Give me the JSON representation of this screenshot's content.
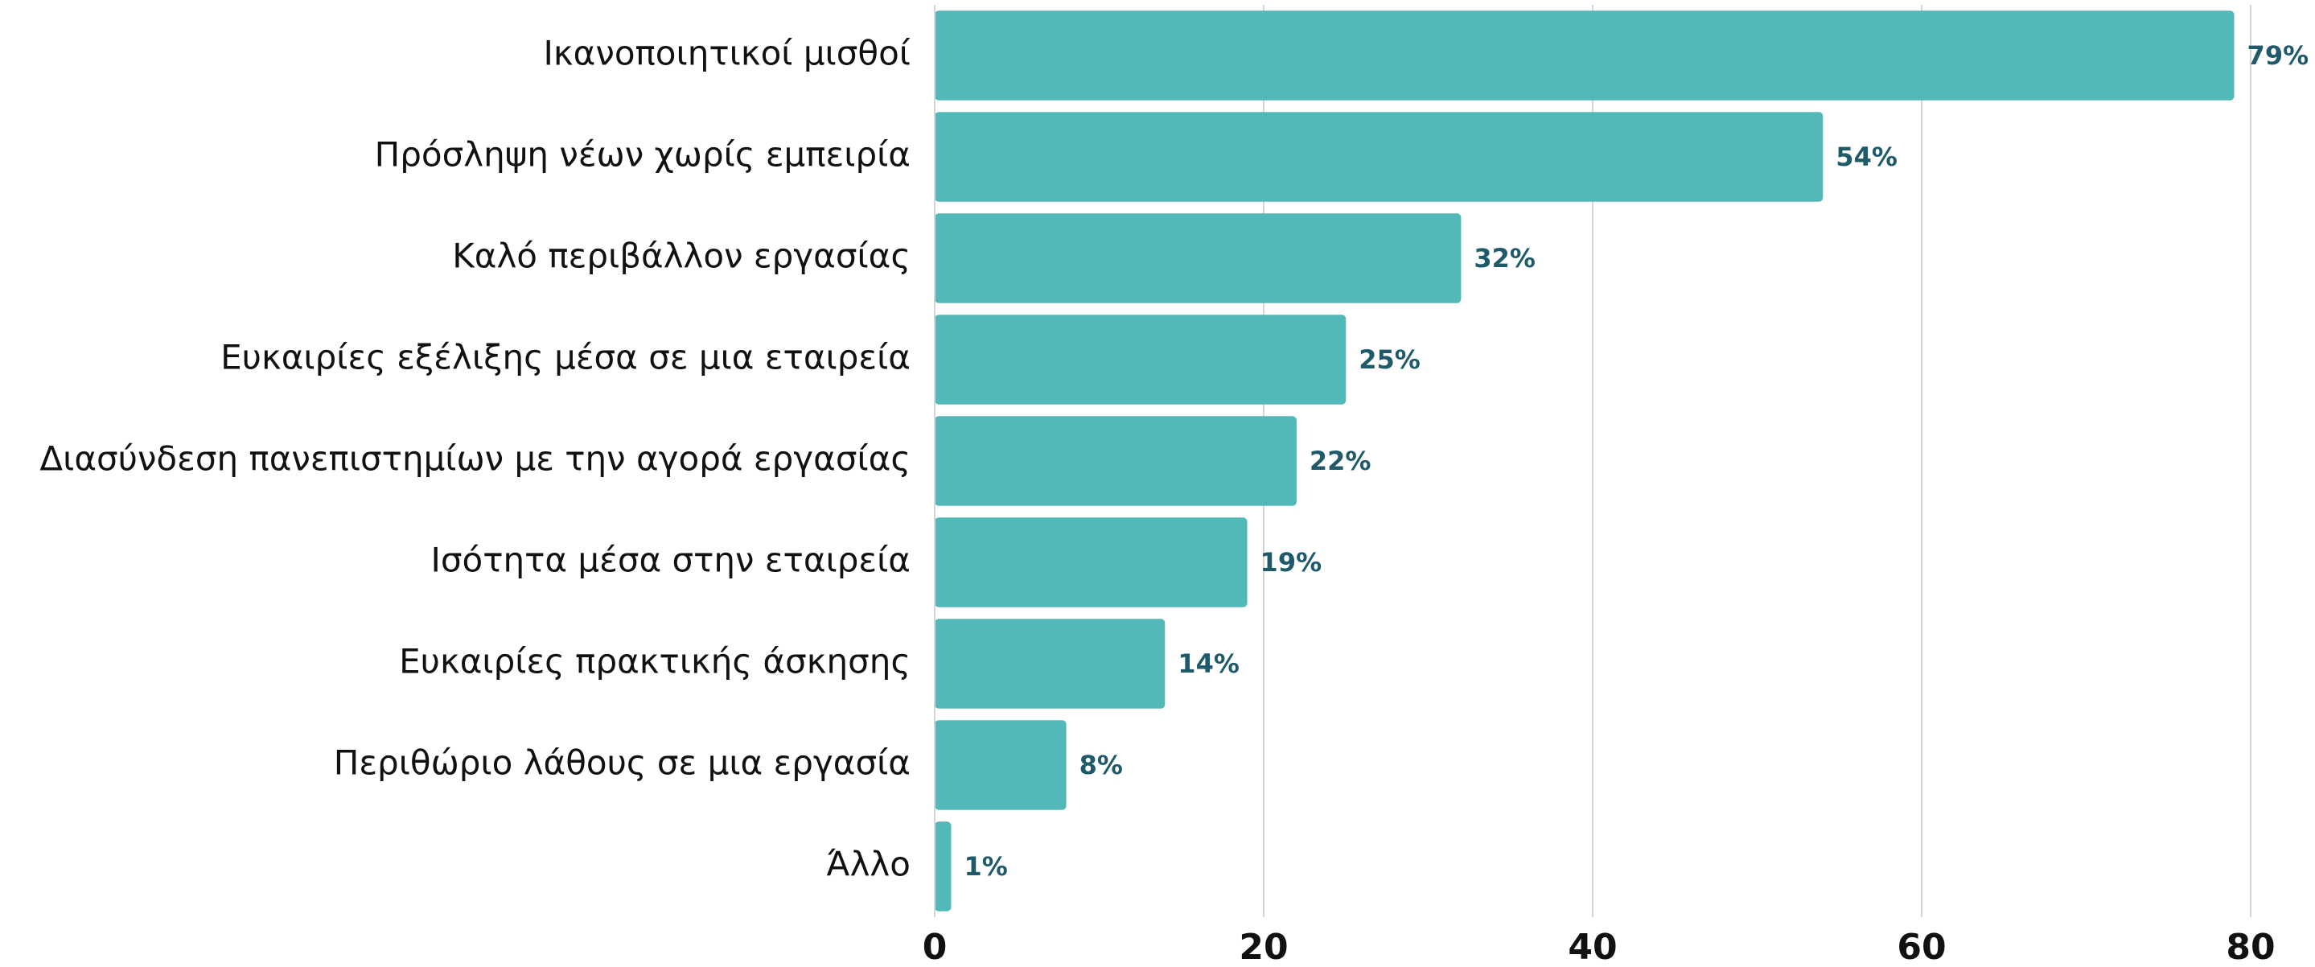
{
  "chart_data": {
    "type": "bar",
    "orientation": "horizontal",
    "categories": [
      "Ικανοποιητικοί μισθοί",
      "Πρόσληψη νέων χωρίς εμπειρία",
      "Καλό περιβάλλον εργασίας",
      "Ευκαιρίες εξέλιξης μέσα σε μια εταιρεία",
      "Διασύνδεση πανεπιστημίων με την αγορά εργασίας",
      "Ισότητα μέσα στην εταιρεία",
      "Ευκαιρίες πρακτικής άσκησης",
      "Περιθώριο λάθους σε μια εργασία",
      "Άλλο"
    ],
    "values": [
      79,
      54,
      32,
      25,
      22,
      19,
      14,
      8,
      1
    ],
    "value_labels": [
      "79%",
      "54%",
      "32%",
      "25%",
      "22%",
      "19%",
      "14%",
      "8%",
      "1%"
    ],
    "color": "#52b8b8",
    "xlim": [
      0,
      80
    ],
    "xticks": [
      0,
      20,
      40,
      60,
      80
    ],
    "grid": true
  }
}
